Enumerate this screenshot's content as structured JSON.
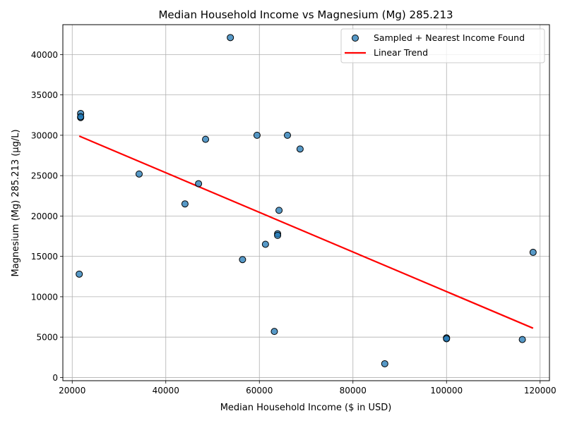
{
  "chart_data": {
    "type": "scatter",
    "title": "Median Household Income vs Magnesium (Mg) 285.213",
    "xlabel": "Median Household Income ($ in USD)",
    "ylabel": "Magnesium (Mg) 285.213 (µg/L)",
    "xlim": [
      18000,
      122000
    ],
    "ylim": [
      -400,
      43700
    ],
    "xticks": [
      20000,
      40000,
      60000,
      80000,
      100000,
      120000
    ],
    "yticks": [
      0,
      5000,
      10000,
      15000,
      20000,
      25000,
      30000,
      35000,
      40000
    ],
    "grid": true,
    "legend_position": "upper right",
    "series": [
      {
        "name": "Sampled + Nearest Income Found",
        "kind": "scatter",
        "color": "#1f77b4",
        "points": [
          {
            "x": 53800,
            "y": 42100
          },
          {
            "x": 21800,
            "y": 32700
          },
          {
            "x": 21800,
            "y": 32200
          },
          {
            "x": 21800,
            "y": 32300
          },
          {
            "x": 59500,
            "y": 30000
          },
          {
            "x": 66000,
            "y": 30000
          },
          {
            "x": 48500,
            "y": 29500
          },
          {
            "x": 68700,
            "y": 28300
          },
          {
            "x": 34300,
            "y": 25200
          },
          {
            "x": 47000,
            "y": 24000
          },
          {
            "x": 44100,
            "y": 21500
          },
          {
            "x": 64200,
            "y": 20700
          },
          {
            "x": 63900,
            "y": 17800
          },
          {
            "x": 63900,
            "y": 17600
          },
          {
            "x": 61300,
            "y": 16500
          },
          {
            "x": 118500,
            "y": 15500
          },
          {
            "x": 56400,
            "y": 14600
          },
          {
            "x": 21500,
            "y": 12800
          },
          {
            "x": 63200,
            "y": 5700
          },
          {
            "x": 100000,
            "y": 4900
          },
          {
            "x": 100000,
            "y": 4800
          },
          {
            "x": 116200,
            "y": 4700
          },
          {
            "x": 86800,
            "y": 1700
          }
        ]
      },
      {
        "name": "Linear Trend",
        "kind": "line",
        "color": "#ff0000",
        "points": [
          {
            "x": 21500,
            "y": 29900
          },
          {
            "x": 118500,
            "y": 6100
          }
        ]
      }
    ]
  }
}
